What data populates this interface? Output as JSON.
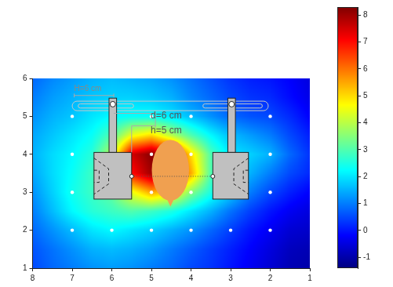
{
  "chart_data": {
    "type": "heatmap",
    "annotations": [
      "H=6 cm",
      "d=6 cm",
      "h=5 cm"
    ],
    "xlim": [
      8,
      1
    ],
    "xticks": [
      8,
      7,
      6,
      5,
      4,
      3,
      2,
      1
    ],
    "ylim": [
      1,
      6
    ],
    "yticks": [
      1,
      2,
      3,
      4,
      5,
      6
    ],
    "grid": false,
    "measurement_x": [
      7,
      6,
      5,
      4,
      3,
      2
    ],
    "measurement_y": [
      2,
      3,
      4,
      5
    ],
    "heatmap": {
      "x": [
        8,
        7.5,
        7,
        6.5,
        6,
        5.5,
        5,
        4.5,
        4,
        3.5,
        3,
        2.5,
        2,
        1.5,
        1
      ],
      "y": [
        1,
        1.5,
        2,
        2.5,
        3,
        3.5,
        4,
        4.5,
        5,
        5.5,
        6
      ],
      "values": [
        [
          0.5,
          0.8,
          1.0,
          1.2,
          1.3,
          1.2,
          1.0,
          0.8,
          0.5,
          0.3,
          0.0,
          -0.3,
          -0.6,
          -0.9,
          -1.0
        ],
        [
          0.6,
          0.9,
          1.2,
          1.5,
          1.6,
          1.5,
          1.3,
          1.0,
          0.7,
          0.4,
          0.1,
          -0.2,
          -0.5,
          -0.8,
          -0.9
        ],
        [
          0.8,
          1.2,
          1.6,
          2.0,
          2.2,
          2.0,
          1.8,
          1.5,
          1.2,
          0.8,
          0.4,
          0.0,
          -0.3,
          -0.6,
          -0.7
        ],
        [
          1.0,
          1.6,
          2.2,
          2.6,
          2.8,
          3.0,
          2.8,
          2.5,
          2.0,
          1.5,
          0.9,
          0.4,
          0.0,
          -0.3,
          -0.5
        ],
        [
          1.2,
          1.8,
          2.4,
          2.8,
          3.2,
          4.5,
          5.5,
          5.0,
          3.5,
          2.5,
          1.8,
          1.0,
          0.5,
          0.1,
          -0.2
        ],
        [
          1.4,
          1.9,
          2.3,
          2.8,
          4.0,
          7.0,
          8.0,
          7.0,
          5.5,
          3.0,
          2.0,
          1.5,
          1.0,
          0.5,
          0.2
        ],
        [
          1.5,
          1.9,
          2.2,
          2.6,
          4.0,
          7.5,
          8.2,
          7.5,
          5.0,
          3.0,
          2.0,
          1.8,
          1.5,
          0.8,
          0.3
        ],
        [
          1.4,
          1.7,
          2.0,
          2.3,
          3.0,
          4.5,
          5.0,
          4.0,
          3.0,
          2.2,
          1.6,
          1.3,
          1.0,
          0.5,
          0.1
        ],
        [
          1.2,
          1.5,
          1.7,
          2.0,
          2.2,
          2.3,
          2.3,
          2.0,
          1.6,
          1.2,
          0.8,
          0.6,
          0.5,
          0.2,
          -0.2
        ],
        [
          1.0,
          1.3,
          1.5,
          1.7,
          1.8,
          1.8,
          1.7,
          1.5,
          1.1,
          0.8,
          0.5,
          0.3,
          0.2,
          -0.1,
          -0.4
        ],
        [
          0.8,
          1.1,
          1.3,
          1.5,
          1.6,
          1.5,
          1.4,
          1.2,
          0.9,
          0.6,
          0.3,
          0.1,
          0.0,
          -0.2,
          -0.5
        ]
      ]
    },
    "colorbar": {
      "lim": [
        -1.4,
        8.3
      ],
      "ticks": [
        -1,
        0,
        1,
        2,
        3,
        4,
        5,
        6,
        7,
        8
      ]
    }
  }
}
